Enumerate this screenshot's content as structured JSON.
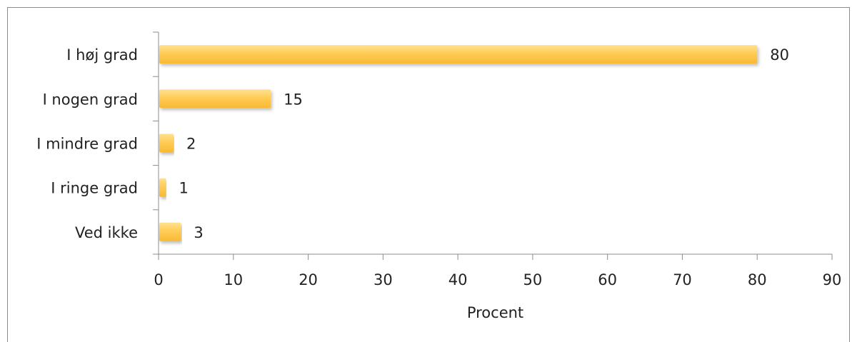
{
  "chart_data": {
    "type": "bar",
    "orientation": "horizontal",
    "categories": [
      "I høj grad",
      "I nogen grad",
      "I mindre grad",
      "I ringe grad",
      "Ved ikke"
    ],
    "values": [
      80,
      15,
      2,
      1,
      3
    ],
    "title": "",
    "xlabel": "Procent",
    "ylabel": "",
    "xlim": [
      0,
      90
    ],
    "xticks": [
      0,
      10,
      20,
      30,
      40,
      50,
      60,
      70,
      80,
      90
    ],
    "xtick_labels": [
      "0",
      "10",
      "20",
      "30",
      "40",
      "50",
      "60",
      "70",
      "80",
      "90"
    ],
    "data_labels": [
      "80",
      "15",
      "2",
      "1",
      "3"
    ],
    "grid": false,
    "legend": "none",
    "bar_color": "#ffc94d",
    "bar_color_light": "#ffe08f",
    "axis_color": "#8c8c8c"
  }
}
